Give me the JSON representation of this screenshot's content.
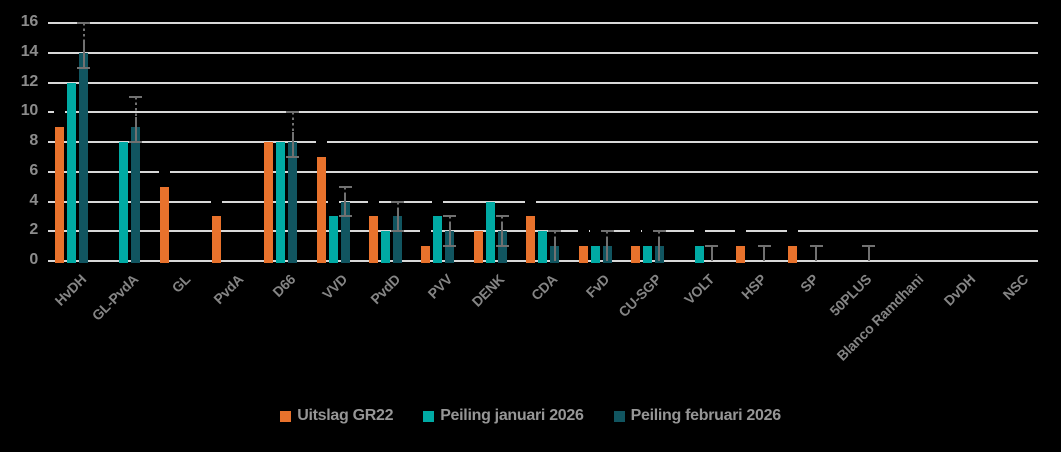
{
  "chart_data": {
    "type": "bar",
    "title": "",
    "xlabel": "",
    "ylabel": "",
    "ylim": [
      0,
      16
    ],
    "yticks": [
      0,
      2,
      4,
      6,
      8,
      10,
      12,
      14,
      16
    ],
    "grid": "horizontal-light-on-black",
    "legend_position": "bottom",
    "categories": [
      "HvDH",
      "GL-PvdA",
      "GL",
      "PvdA",
      "D66",
      "VVD",
      "PvdD",
      "PVV",
      "DENK",
      "CDA",
      "FvD",
      "CU-SGP",
      "VOLT",
      "HSP",
      "SP",
      "50PLUS",
      "Blanco Ramdhani",
      "DvDH",
      "NSC"
    ],
    "series": [
      {
        "name": "Uitslag GR22",
        "color": "#E8722C",
        "values": [
          9,
          0,
          5,
          3,
          8,
          7,
          3,
          1,
          2,
          3,
          1,
          1,
          0,
          1,
          1,
          0,
          0,
          0,
          0
        ]
      },
      {
        "name": "Peiling januari 2026",
        "color": "#00AAA4",
        "values": [
          12,
          8,
          0,
          0,
          8,
          3,
          2,
          3,
          4,
          2,
          1,
          1,
          1,
          0,
          0,
          0,
          0,
          0,
          0
        ]
      },
      {
        "name": "Peiling februari 2026",
        "color": "#115560",
        "values": [
          14,
          9,
          0,
          0,
          8,
          4,
          3,
          2,
          2,
          1,
          1,
          1,
          0,
          0,
          0,
          0,
          0,
          0,
          0
        ],
        "error_low": [
          13,
          8,
          null,
          null,
          7,
          3,
          2,
          1,
          1,
          0,
          0,
          0,
          0,
          0,
          0,
          0,
          null,
          null,
          null
        ],
        "error_high": [
          16,
          11,
          null,
          null,
          10,
          5,
          4,
          3,
          3,
          2,
          2,
          2,
          1,
          1,
          1,
          1,
          null,
          null,
          null
        ]
      }
    ],
    "notes": {
      "whisker_color": "#717171",
      "rounding_cap_color": "#000000",
      "rounding_cap_rule": "small black tick one seat above Uitslag/januari bars, visible where it crosses a gridline"
    }
  },
  "legend": {
    "items": [
      {
        "label": "Uitslag GR22",
        "color": "#E8722C"
      },
      {
        "label": "Peiling januari 2026",
        "color": "#00AAA4"
      },
      {
        "label": "Peiling februari 2026",
        "color": "#115560"
      }
    ]
  },
  "colors": {
    "background": "#000000",
    "gridline": "#D8D8D8",
    "axis_text": "#8C8C8C",
    "xaxis_text": "#858585",
    "legend_text": "#969696"
  }
}
